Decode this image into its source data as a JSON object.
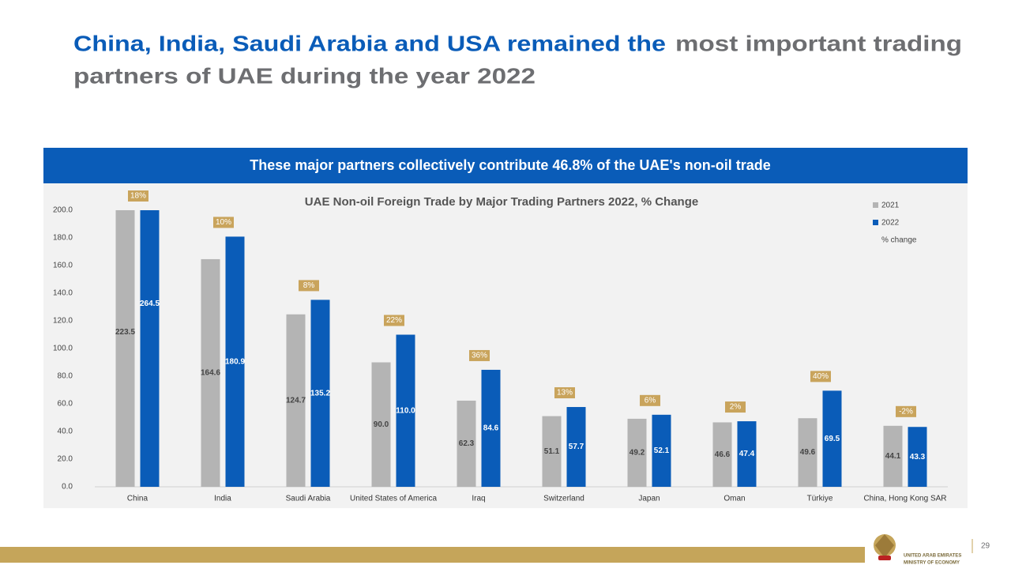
{
  "headline": [
    "China, India, Saudi Arabia and USA remained the",
    "most important trading",
    "partners of UAE during the year 2022"
  ],
  "banner": "These major partners collectively contribute 46.8% of the UAE's non-oil trade",
  "chart_data": {
    "type": "bar",
    "title": "UAE Non-oil Foreign Trade by Major Trading Partners 2022, % Change",
    "categories": [
      "China",
      "India",
      "Saudi Arabia",
      "United States of America",
      "Iraq",
      "Switzerland",
      "Japan",
      "Oman",
      "Türkiye",
      "China, Hong Kong SAR"
    ],
    "series": [
      {
        "name": "2021",
        "color": "#b4b4b4",
        "values": [
          223.5,
          164.6,
          124.7,
          90.0,
          62.3,
          51.1,
          49.2,
          46.6,
          49.6,
          44.1
        ],
        "value_labels": [
          "223.5",
          "164.6",
          "124.7",
          "90.0",
          "62.3",
          "51.1",
          "49.2",
          "46.6",
          "49.6",
          "44.1"
        ]
      },
      {
        "name": "2022",
        "color": "#0a5cb8",
        "values": [
          264.5,
          180.9,
          135.2,
          110.0,
          84.6,
          57.7,
          52.1,
          47.4,
          69.5,
          43.3
        ],
        "value_labels": [
          "264.5",
          "180.9",
          "135.2",
          "110.0",
          "84.6",
          "57.7",
          "52.1",
          "47.4",
          "69.5",
          "43.3"
        ]
      }
    ],
    "pct_change": {
      "name": "% change",
      "color": "#c9a45c",
      "values": [
        18,
        10,
        8,
        22,
        36,
        13,
        6,
        2,
        40,
        -2
      ],
      "value_labels": [
        "18%",
        "10%",
        "8%",
        "22%",
        "36%",
        "13%",
        "6%",
        "2%",
        "40%",
        "-2%"
      ]
    },
    "ylim": [
      0,
      200
    ],
    "yticks": [
      {
        "value": 0,
        "label": "0.0"
      },
      {
        "value": 20,
        "label": "20.0"
      },
      {
        "value": 40,
        "label": "40.0"
      },
      {
        "value": 60,
        "label": "60.0"
      },
      {
        "value": 80,
        "label": "80.0"
      },
      {
        "value": 100,
        "label": "100.0"
      },
      {
        "value": 120,
        "label": "120.0"
      },
      {
        "value": 140,
        "label": "140.0"
      },
      {
        "value": 160,
        "label": "160.0"
      },
      {
        "value": 180,
        "label": "180.0"
      },
      {
        "value": 200,
        "label": "200.0"
      }
    ],
    "legend": "top-right"
  },
  "footer": {
    "org_line1": "UNITED ARAB EMIRATES",
    "org_line2": "MINISTRY OF ECONOMY",
    "page_number": "29"
  }
}
